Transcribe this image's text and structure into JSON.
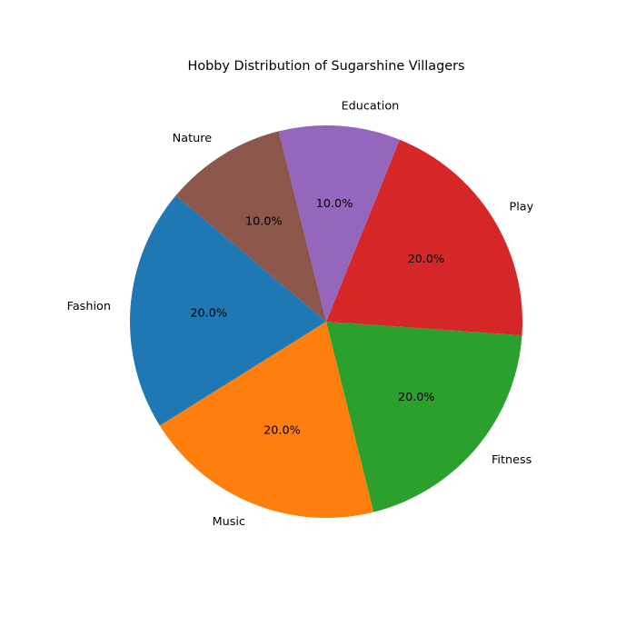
{
  "chart_data": {
    "type": "pie",
    "title": "Hobby Distribution of Sugarshine Villagers",
    "categories": [
      "Fashion",
      "Music",
      "Fitness",
      "Play",
      "Education",
      "Nature"
    ],
    "values": [
      20,
      20,
      20,
      20,
      10,
      10
    ],
    "percent_labels": [
      "20.0%",
      "20.0%",
      "20.0%",
      "20.0%",
      "10.0%",
      "10.0%"
    ],
    "colors": [
      "#1f77b4",
      "#ff7f0e",
      "#2ca02c",
      "#d62728",
      "#9467bd",
      "#8c564b"
    ],
    "start_angle_deg": 140,
    "direction": "counterclockwise",
    "legend": "none"
  }
}
